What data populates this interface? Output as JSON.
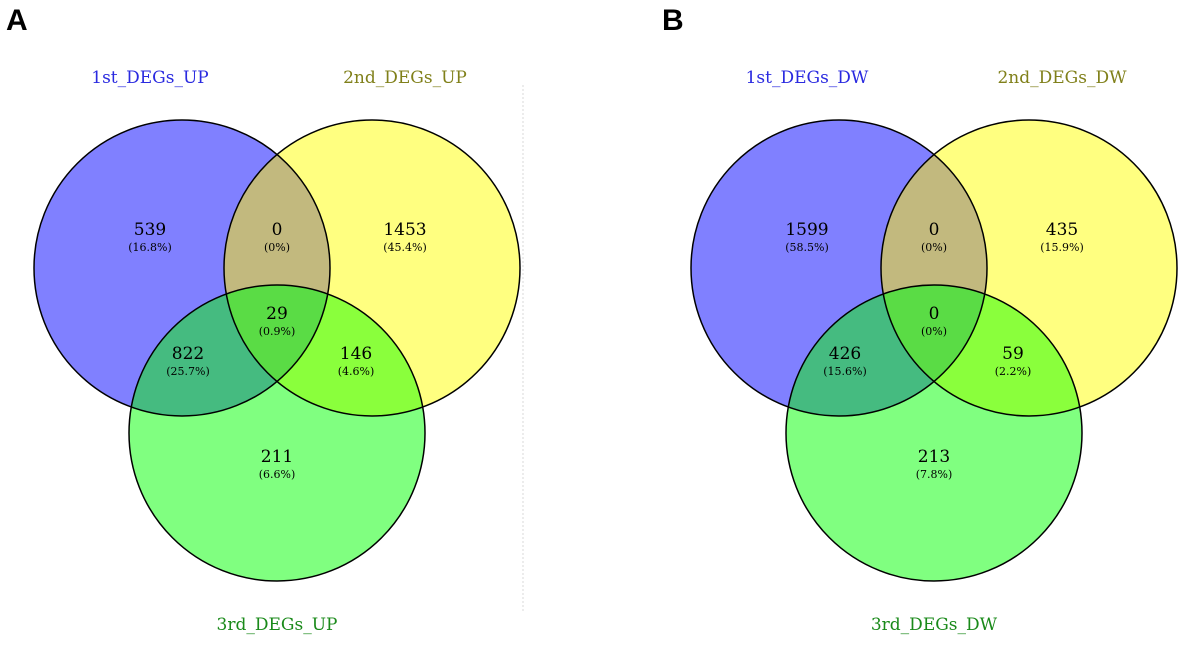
{
  "colors": {
    "set1": "#8080ff",
    "set2": "#ffff80",
    "set3": "#80ff80",
    "overlap12": "#c2b97e",
    "overlap13": "#45bb80",
    "overlap23": "#8aff3c",
    "overlap123": "#5adc45",
    "label1": "#2a2ae0",
    "label2": "#80801a",
    "label3": "#1a8a1a"
  },
  "panels": [
    {
      "letter": "A",
      "labels": {
        "set1": "1st_DEGs_UP",
        "set2": "2nd_DEGs_UP",
        "set3": "3rd_DEGs_UP"
      },
      "regions": {
        "only1": {
          "count": "539",
          "pct": "(16.8%)"
        },
        "only2": {
          "count": "1453",
          "pct": "(45.4%)"
        },
        "only3": {
          "count": "211",
          "pct": "(6.6%)"
        },
        "r12": {
          "count": "0",
          "pct": "(0%)"
        },
        "r13": {
          "count": "822",
          "pct": "(25.7%)"
        },
        "r23": {
          "count": "146",
          "pct": "(4.6%)"
        },
        "r123": {
          "count": "29",
          "pct": "(0.9%)"
        }
      }
    },
    {
      "letter": "B",
      "labels": {
        "set1": "1st_DEGs_DW",
        "set2": "2nd_DEGs_DW",
        "set3": "3rd_DEGs_DW"
      },
      "regions": {
        "only1": {
          "count": "1599",
          "pct": "(58.5%)"
        },
        "only2": {
          "count": "435",
          "pct": "(15.9%)"
        },
        "only3": {
          "count": "213",
          "pct": "(7.8%)"
        },
        "r12": {
          "count": "0",
          "pct": "(0%)"
        },
        "r13": {
          "count": "426",
          "pct": "(15.6%)"
        },
        "r23": {
          "count": "59",
          "pct": "(2.2%)"
        },
        "r123": {
          "count": "0",
          "pct": "(0%)"
        }
      }
    }
  ]
}
